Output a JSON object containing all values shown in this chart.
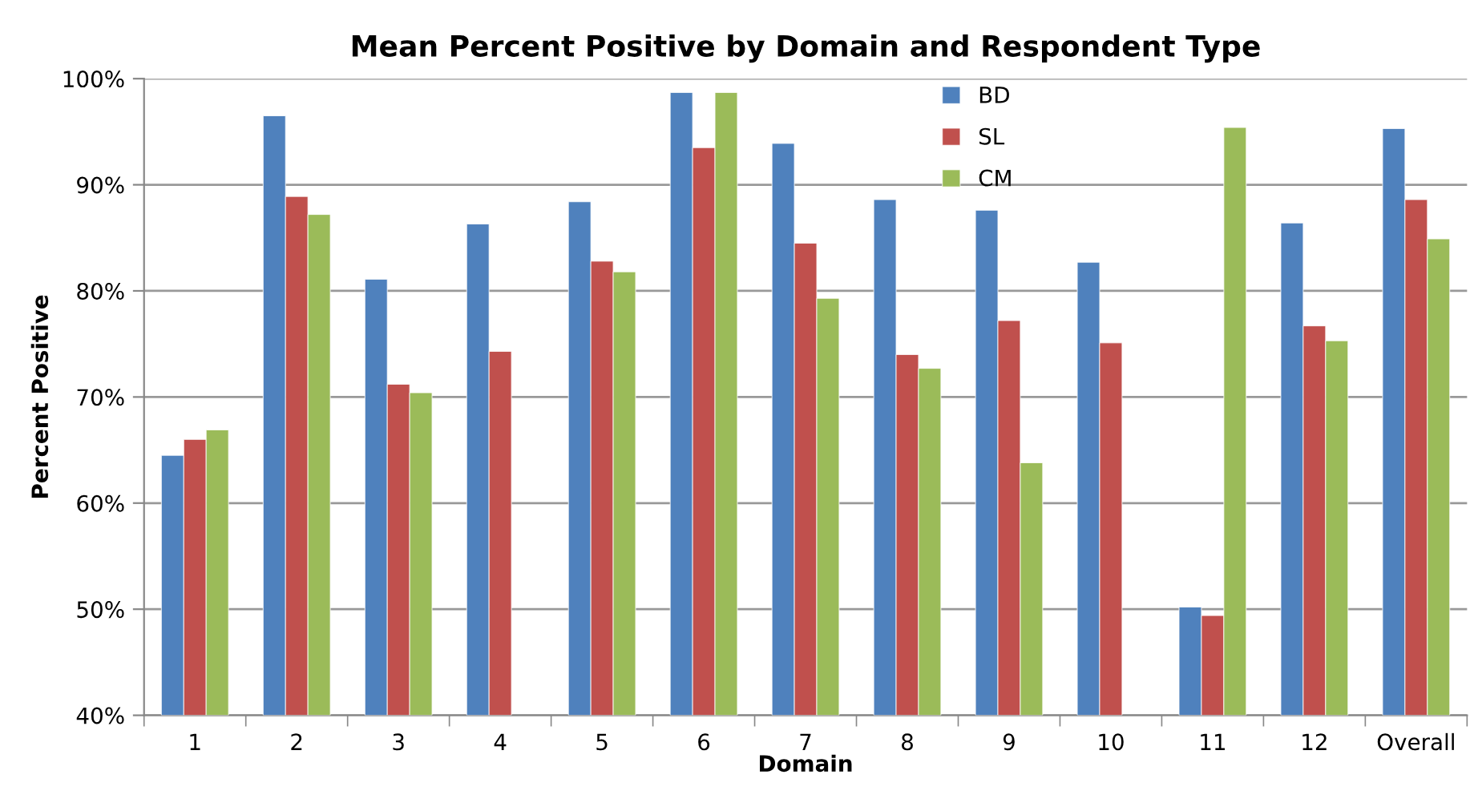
{
  "chart_data": {
    "type": "bar",
    "title": "Mean Percent Positive by Domain and Respondent Type",
    "xlabel": "Domain",
    "ylabel": "Percent Positive",
    "categories": [
      "1",
      "2",
      "3",
      "4",
      "5",
      "6",
      "7",
      "8",
      "9",
      "10",
      "11",
      "12",
      "Overall"
    ],
    "series": [
      {
        "name": "BD",
        "color": "#4f81bd",
        "values": [
          64.5,
          96.5,
          81.1,
          86.3,
          88.4,
          98.7,
          93.9,
          88.6,
          87.6,
          82.7,
          50.2,
          86.4,
          95.3
        ]
      },
      {
        "name": "SL",
        "color": "#c0504d",
        "values": [
          66.0,
          88.9,
          71.2,
          74.3,
          82.8,
          93.5,
          84.5,
          74.0,
          77.2,
          75.1,
          49.4,
          76.7,
          88.6
        ]
      },
      {
        "name": "CM",
        "color": "#9bbb59",
        "values": [
          66.9,
          87.2,
          70.4,
          null,
          81.8,
          98.7,
          79.3,
          72.7,
          63.8,
          null,
          95.4,
          75.3,
          84.9
        ]
      }
    ],
    "ylim": [
      40,
      100
    ],
    "yticks": [
      {
        "value": 40,
        "label": "40%"
      },
      {
        "value": 50,
        "label": "50%"
      },
      {
        "value": 60,
        "label": "60%"
      },
      {
        "value": 70,
        "label": "70%"
      },
      {
        "value": 80,
        "label": "80%"
      },
      {
        "value": 90,
        "label": "90%"
      },
      {
        "value": 100,
        "label": "100%"
      }
    ],
    "grid": "y",
    "legend": "top"
  }
}
